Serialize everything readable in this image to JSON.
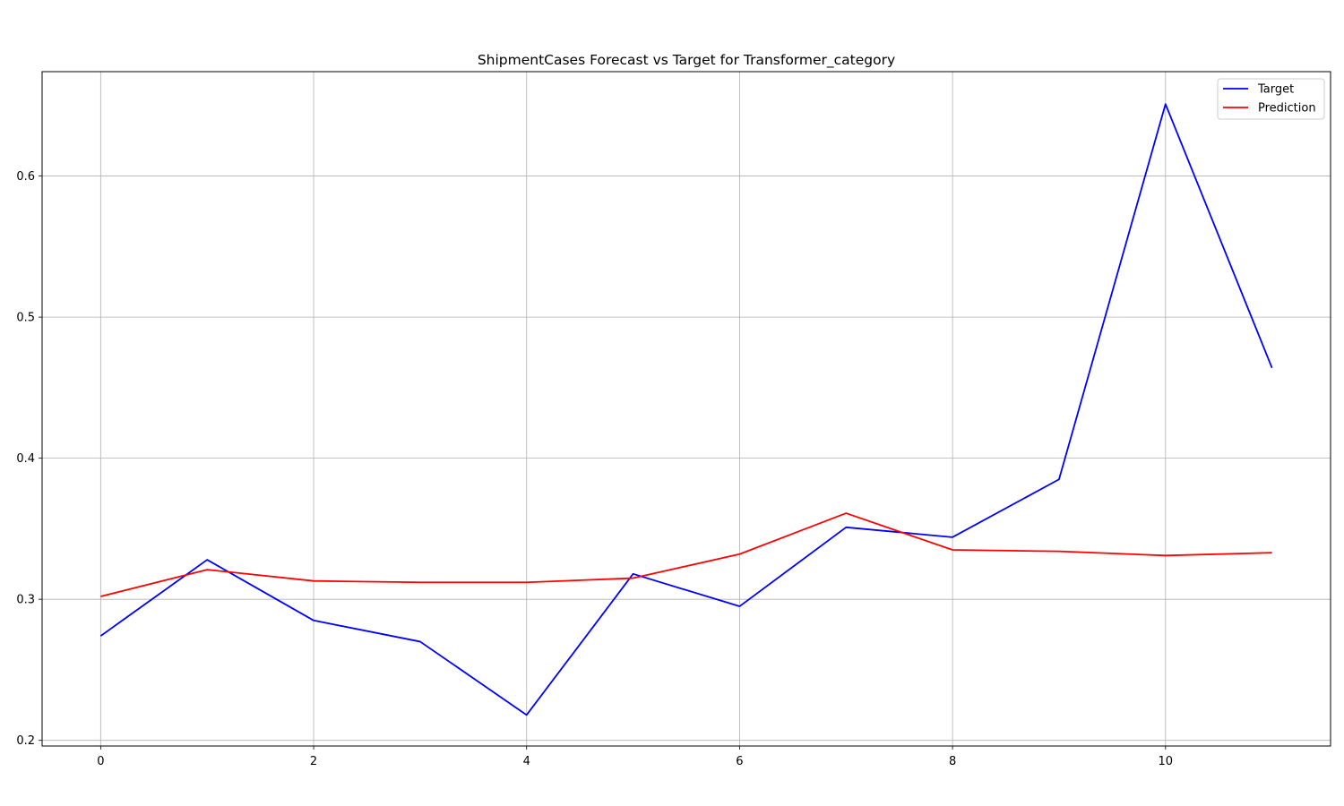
{
  "chart_data": {
    "type": "line",
    "title": "ShipmentCases Forecast vs Target for Transformer_category",
    "xlabel": "",
    "ylabel": "",
    "x": [
      0,
      1,
      2,
      3,
      4,
      5,
      6,
      7,
      8,
      9,
      10,
      11
    ],
    "xlim": [
      -0.55,
      11.55
    ],
    "ylim": [
      0.196,
      0.674
    ],
    "xticks": [
      0,
      2,
      4,
      6,
      8,
      10
    ],
    "yticks": [
      0.2,
      0.3,
      0.4,
      0.5,
      0.6
    ],
    "xtick_labels": [
      "0",
      "2",
      "4",
      "6",
      "8",
      "10"
    ],
    "ytick_labels": [
      "0.2",
      "0.3",
      "0.4",
      "0.5",
      "0.6"
    ],
    "grid": true,
    "legend_position": "top-right",
    "series": [
      {
        "name": "Target",
        "color": "#0000ff",
        "values": [
          0.274,
          0.328,
          0.285,
          0.27,
          0.218,
          0.318,
          0.295,
          0.351,
          0.344,
          0.385,
          0.651,
          0.464
        ]
      },
      {
        "name": "Prediction",
        "color": "#ff0000",
        "values": [
          0.302,
          0.321,
          0.313,
          0.312,
          0.312,
          0.315,
          0.332,
          0.361,
          0.335,
          0.334,
          0.331,
          0.333
        ]
      }
    ]
  }
}
